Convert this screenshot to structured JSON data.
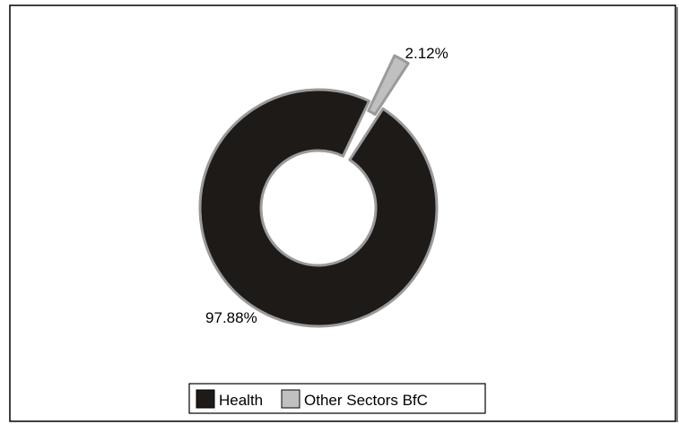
{
  "chart_data": {
    "type": "pie",
    "donut": true,
    "exploded_slice": "Other Sectors BfC",
    "legend_position": "bottom",
    "slices": [
      {
        "name": "Health",
        "value": 97.88,
        "label": "97.88%",
        "color": "#1e1a18"
      },
      {
        "name": "Other Sectors BfC",
        "value": 2.12,
        "label": "2.12%",
        "color": "#c0c0c0"
      }
    ]
  }
}
